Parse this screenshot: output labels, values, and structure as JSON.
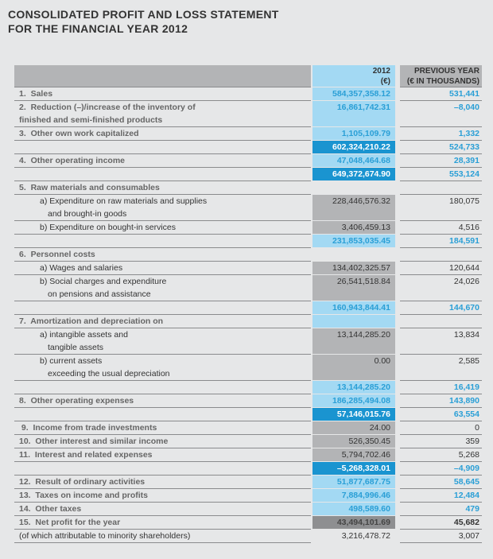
{
  "title": [
    "CONSOLIDATED PROFIT AND LOSS STATEMENT",
    "FOR THE FINANCIAL YEAR 2012"
  ],
  "header": {
    "col_2012": [
      "2012",
      "(€)"
    ],
    "col_prev": [
      "PREVIOUS YEAR",
      "(€ IN THOUSANDS)"
    ]
  },
  "rows": [
    {
      "label": [
        "1.  Sales"
      ],
      "kind": "num",
      "v2012": "584,357,358.12",
      "style": "light",
      "prev": "531,441"
    },
    {
      "label": [
        "2.  Reduction (–)/increase of the inventory of",
        "finished and semi-finished products"
      ],
      "kind": "num",
      "v2012": "16,861,742.31",
      "style": "light",
      "prev": "–8,040"
    },
    {
      "label": [
        "3.  Other own work capitalized"
      ],
      "kind": "num",
      "v2012": "1,105,109.79",
      "style": "light",
      "prev": "1,332"
    },
    {
      "label": [
        ""
      ],
      "kind": "num",
      "v2012": "602,324,210.22",
      "style": "dark",
      "prev": "524,733"
    },
    {
      "label": [
        "4.  Other operating income"
      ],
      "kind": "num",
      "v2012": "47,048,464.68",
      "style": "light",
      "prev": "28,391"
    },
    {
      "label": [
        ""
      ],
      "kind": "num",
      "v2012": "649,372,674.90",
      "style": "dark",
      "prev": "553,124"
    },
    {
      "label": [
        "5.  Raw materials and consumables"
      ],
      "kind": "num",
      "v2012": "",
      "style": "none",
      "prev": ""
    },
    {
      "label": [
        "a) Expenditure on raw materials and supplies",
        "and brought-in goods"
      ],
      "kind": "sub",
      "v2012": "228,446,576.32",
      "style": "gray",
      "prev": "180,075"
    },
    {
      "label": [
        "b) Expenditure on bought-in services"
      ],
      "kind": "sub",
      "v2012": "3,406,459.13",
      "style": "gray",
      "prev": "4,516"
    },
    {
      "label": [
        ""
      ],
      "kind": "num",
      "v2012": "231,853,035.45",
      "style": "light",
      "prev": "184,591"
    },
    {
      "label": [
        "6.  Personnel costs"
      ],
      "kind": "num",
      "v2012": "",
      "style": "none",
      "prev": ""
    },
    {
      "label": [
        "a) Wages and salaries"
      ],
      "kind": "sub",
      "v2012": "134,402,325.57",
      "style": "gray",
      "prev": "120,644"
    },
    {
      "label": [
        "b) Social charges and expenditure",
        "on pensions and assistance"
      ],
      "kind": "sub",
      "v2012": "26,541,518.84",
      "style": "gray",
      "prev": "24,026"
    },
    {
      "label": [
        ""
      ],
      "kind": "num",
      "v2012": "160,943,844.41",
      "style": "light",
      "prev": "144,670"
    },
    {
      "label": [
        "7.  Amortization and depreciation on"
      ],
      "kind": "num",
      "v2012": "",
      "style": "light",
      "prev": ""
    },
    {
      "label": [
        "a) intangible assets and",
        "tangible assets"
      ],
      "kind": "sub",
      "v2012": "13,144,285.20",
      "style": "gray",
      "prev": "13,834"
    },
    {
      "label": [
        "b) current assets",
        "exceeding the usual depreciation"
      ],
      "kind": "sub",
      "v2012": "0.00",
      "style": "gray",
      "prev": "2,585"
    },
    {
      "label": [
        ""
      ],
      "kind": "num",
      "v2012": "13,144,285.20",
      "style": "light",
      "prev": "16,419"
    },
    {
      "label": [
        "8.  Other operating expenses"
      ],
      "kind": "num",
      "v2012": "186,285,494.08",
      "style": "light",
      "prev": "143,890"
    },
    {
      "label": [
        ""
      ],
      "kind": "num",
      "v2012": "57,146,015.76",
      "style": "dark",
      "prev": "63,554"
    },
    {
      "label": [
        " 9.  Income from trade investments"
      ],
      "kind": "num",
      "v2012": "24.00",
      "style": "gray",
      "prev": "0"
    },
    {
      "label": [
        "10.  Other interest and similar income"
      ],
      "kind": "num",
      "v2012": "526,350.45",
      "style": "gray",
      "prev": "359"
    },
    {
      "label": [
        "11.  Interest and related expenses"
      ],
      "kind": "num",
      "v2012": "5,794,702.46",
      "style": "gray",
      "prev": "5,268"
    },
    {
      "label": [
        ""
      ],
      "kind": "num",
      "v2012": "–5,268,328.01",
      "style": "dark",
      "prev": "–4,909"
    },
    {
      "label": [
        "12.  Result of ordinary activities"
      ],
      "kind": "num",
      "v2012": "51,877,687.75",
      "style": "light",
      "prev": "58,645"
    },
    {
      "label": [
        "13.  Taxes on income and profits"
      ],
      "kind": "num",
      "v2012": "7,884,996.46",
      "style": "light",
      "prev": "12,484"
    },
    {
      "label": [
        "14.  Other taxes"
      ],
      "kind": "num",
      "v2012": "498,589.60",
      "style": "light",
      "prev": "479"
    },
    {
      "label": [
        "15.  Net profit for the year"
      ],
      "kind": "num",
      "v2012": "43,494,101.69",
      "style": "gdark",
      "prev": "45,682"
    },
    {
      "label": [
        "(of which attributable to minority shareholders)"
      ],
      "kind": "min",
      "v2012": "3,216,478.72",
      "style": "none",
      "prev": "3,007"
    }
  ],
  "colors": {
    "light_blue": "#a3d9f3",
    "dark_blue": "#1a94d0",
    "text_blue": "#2a9fd6",
    "gray": "#b3b4b6",
    "background": "#e6e7e8"
  }
}
